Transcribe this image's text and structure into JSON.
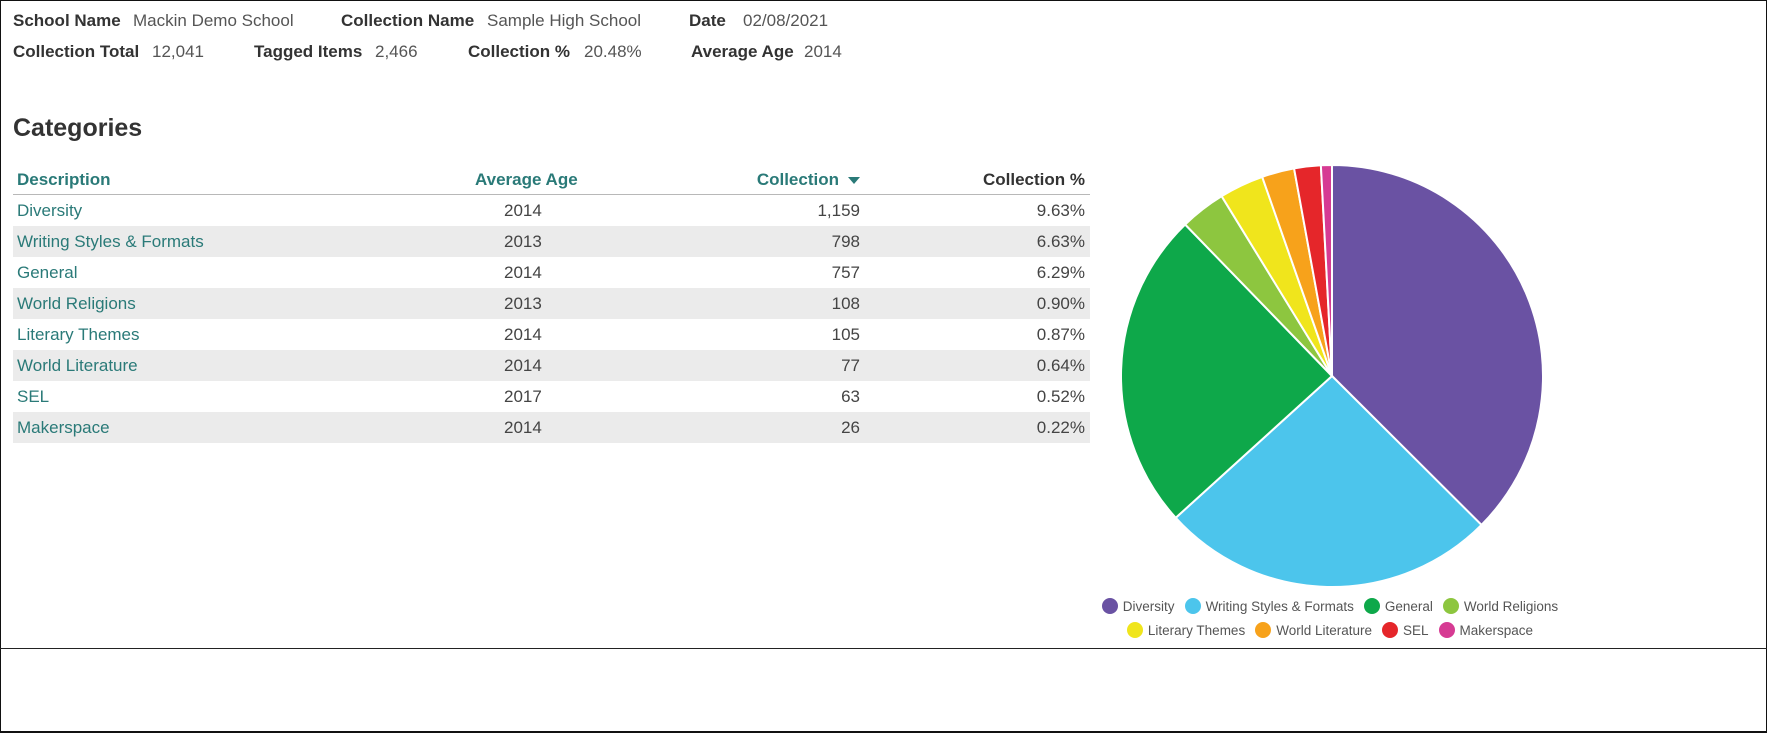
{
  "header": {
    "school_name_label": "School Name",
    "school_name": "Mackin Demo School",
    "collection_name_label": "Collection Name",
    "collection_name": "Sample High School",
    "date_label": "Date",
    "date": "02/08/2021",
    "collection_total_label": "Collection Total",
    "collection_total": "12,041",
    "tagged_items_label": "Tagged Items",
    "tagged_items": "2,466",
    "collection_pct_label": "Collection %",
    "collection_pct": "20.48%",
    "average_age_label": "Average Age",
    "average_age": "2014"
  },
  "section_title": "Categories",
  "table": {
    "headers": {
      "description": "Description",
      "average_age": "Average Age",
      "collection": "Collection",
      "collection_pct": "Collection %"
    },
    "sort_icon": "caret-down-icon",
    "rows": [
      {
        "description": "Diversity",
        "average_age": "2014",
        "collection": "1,159",
        "collection_pct": "9.63%"
      },
      {
        "description": "Writing Styles & Formats",
        "average_age": "2013",
        "collection": "798",
        "collection_pct": "6.63%"
      },
      {
        "description": "General",
        "average_age": "2014",
        "collection": "757",
        "collection_pct": "6.29%"
      },
      {
        "description": "World Religions",
        "average_age": "2013",
        "collection": "108",
        "collection_pct": "0.90%"
      },
      {
        "description": "Literary Themes",
        "average_age": "2014",
        "collection": "105",
        "collection_pct": "0.87%"
      },
      {
        "description": "World Literature",
        "average_age": "2014",
        "collection": "77",
        "collection_pct": "0.64%"
      },
      {
        "description": "SEL",
        "average_age": "2017",
        "collection": "63",
        "collection_pct": "0.52%"
      },
      {
        "description": "Makerspace",
        "average_age": "2014",
        "collection": "26",
        "collection_pct": "0.22%"
      }
    ]
  },
  "chart_data": {
    "type": "pie",
    "title": "",
    "legend_position": "bottom",
    "categories": [
      "Diversity",
      "Writing Styles & Formats",
      "General",
      "World Religions",
      "Literary Themes",
      "World Literature",
      "SEL",
      "Makerspace"
    ],
    "values": [
      1159,
      798,
      757,
      108,
      105,
      77,
      63,
      26
    ],
    "colors": [
      "#6a52a3",
      "#4cc5ec",
      "#0ea84a",
      "#8dc63f",
      "#f0e51c",
      "#f7a21b",
      "#e5262a",
      "#d63b93"
    ]
  }
}
